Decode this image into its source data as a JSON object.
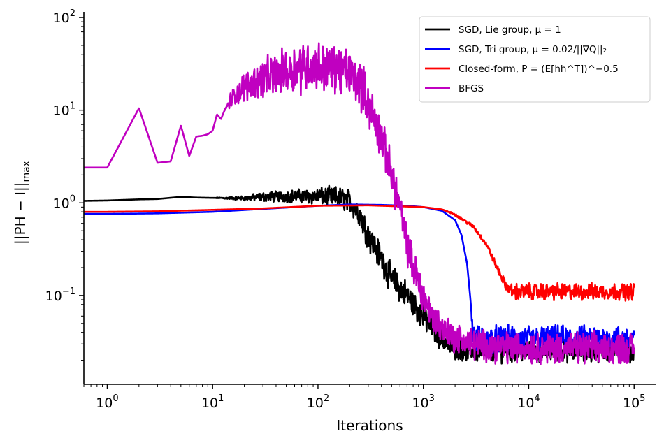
{
  "chart_data": {
    "type": "line",
    "xlabel": "Iterations",
    "ylabel": "||PH − I||",
    "ylabel_sub": "max",
    "x_scale": "log",
    "y_scale": "log",
    "xlim": [
      0.6,
      160000
    ],
    "ylim": [
      0.011,
      115
    ],
    "grid": false,
    "legend_position": "top-right",
    "x_ticks": [
      {
        "value": 1,
        "base": "10",
        "exp": "0"
      },
      {
        "value": 10,
        "base": "10",
        "exp": "1"
      },
      {
        "value": 100,
        "base": "10",
        "exp": "2"
      },
      {
        "value": 1000,
        "base": "10",
        "exp": "3"
      },
      {
        "value": 10000,
        "base": "10",
        "exp": "4"
      },
      {
        "value": 100000,
        "base": "10",
        "exp": "5"
      }
    ],
    "y_ticks": [
      {
        "value": 0.1,
        "base": "10",
        "exp": "−1"
      },
      {
        "value": 1,
        "base": "10",
        "exp": "0"
      },
      {
        "value": 10,
        "base": "10",
        "exp": "1"
      },
      {
        "value": 100,
        "base": "10",
        "exp": "2"
      }
    ],
    "series": [
      {
        "name": "SGD, Lie group, μ = 1",
        "color": "#000000",
        "x": [
          0.6,
          1,
          2,
          3,
          5,
          7,
          10,
          20,
          30,
          50,
          100,
          150,
          200,
          250,
          300,
          400,
          500,
          700,
          1000,
          1300,
          1700,
          2200,
          3000,
          5000,
          10000,
          30000,
          100000
        ],
        "y": [
          1.05,
          1.06,
          1.09,
          1.1,
          1.16,
          1.14,
          1.13,
          1.12,
          1.16,
          1.18,
          1.18,
          1.15,
          1.05,
          0.75,
          0.45,
          0.25,
          0.15,
          0.1,
          0.06,
          0.042,
          0.03,
          0.026,
          0.025,
          0.025,
          0.025,
          0.025,
          0.025
        ],
        "noise": [
          0,
          0,
          0,
          0,
          0,
          0,
          0,
          0.02,
          0.04,
          0.05,
          0.07,
          0.09,
          0.1,
          0.11,
          0.12,
          0.12,
          0.12,
          0.12,
          0.12,
          0.12,
          0.1,
          0.09,
          0.09,
          0.09,
          0.09,
          0.09,
          0.09
        ]
      },
      {
        "name": "SGD, Tri group, μ = 0.02/||∇Q||₂",
        "color": "#0000ff",
        "x": [
          0.6,
          1,
          3,
          10,
          30,
          100,
          200,
          400,
          700,
          1000,
          1500,
          2000,
          2300,
          2600,
          2800,
          2950,
          3000,
          5000,
          10000,
          30000,
          100000
        ],
        "y": [
          0.76,
          0.76,
          0.77,
          0.8,
          0.86,
          0.93,
          0.96,
          0.95,
          0.93,
          0.9,
          0.82,
          0.65,
          0.45,
          0.22,
          0.09,
          0.04,
          0.034,
          0.034,
          0.034,
          0.034,
          0.034
        ],
        "noise": [
          0,
          0,
          0,
          0,
          0,
          0,
          0,
          0,
          0,
          0,
          0,
          0,
          0,
          0,
          0,
          0.05,
          0.11,
          0.11,
          0.11,
          0.11,
          0.11
        ]
      },
      {
        "name": "Closed-form, P = (E[hh^T])^−0.5",
        "color": "#ff0000",
        "x": [
          0.6,
          1,
          3,
          10,
          30,
          100,
          300,
          1000,
          1500,
          2000,
          3000,
          4000,
          5000,
          6000,
          7000,
          8000,
          10000,
          30000,
          100000
        ],
        "y": [
          0.8,
          0.8,
          0.81,
          0.84,
          0.87,
          0.93,
          0.94,
          0.9,
          0.85,
          0.75,
          0.55,
          0.35,
          0.2,
          0.13,
          0.11,
          0.11,
          0.11,
          0.11,
          0.11
        ],
        "noise": [
          0,
          0,
          0,
          0,
          0,
          0,
          0,
          0,
          0,
          0.01,
          0.015,
          0.02,
          0.03,
          0.04,
          0.06,
          0.07,
          0.07,
          0.07,
          0.07
        ]
      },
      {
        "name": "BFGS",
        "color": "#c000c0",
        "x": [
          0.6,
          1,
          2,
          3,
          4,
          5,
          6,
          7,
          8,
          9,
          10,
          11,
          12,
          13,
          15,
          20,
          30,
          50,
          70,
          100,
          150,
          200,
          250,
          300,
          400,
          500,
          600,
          700,
          800,
          900,
          1000,
          1200,
          1500,
          2000,
          3000,
          5000,
          10000,
          30000,
          100000
        ],
        "y": [
          2.4,
          2.4,
          10.5,
          2.7,
          2.8,
          6.8,
          3.2,
          5.2,
          5.3,
          5.5,
          6.0,
          9.0,
          8.0,
          10.0,
          13.0,
          18.0,
          22.0,
          26.0,
          30.0,
          30.0,
          28.0,
          25.0,
          20.0,
          12.0,
          5.0,
          2.0,
          0.9,
          0.35,
          0.2,
          0.14,
          0.1,
          0.06,
          0.045,
          0.035,
          0.03,
          0.028,
          0.027,
          0.027,
          0.027
        ],
        "noise": [
          0,
          0,
          0,
          0,
          0,
          0,
          0,
          0,
          0,
          0,
          0,
          0,
          0,
          0,
          0.08,
          0.12,
          0.16,
          0.2,
          0.22,
          0.2,
          0.2,
          0.2,
          0.2,
          0.2,
          0.18,
          0.16,
          0.16,
          0.16,
          0.16,
          0.16,
          0.14,
          0.14,
          0.13,
          0.13,
          0.13,
          0.13,
          0.13,
          0.13,
          0.13
        ]
      }
    ]
  }
}
